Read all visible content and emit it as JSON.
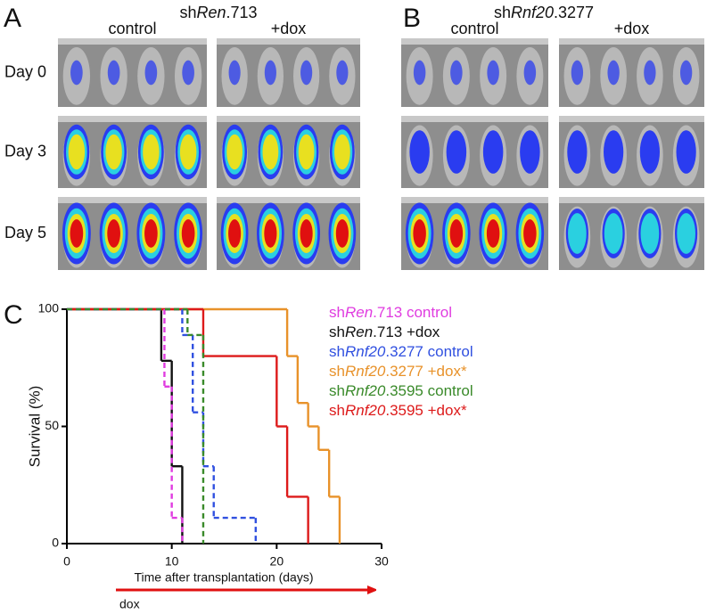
{
  "panels": [
    {
      "label": "A",
      "title": [
        "sh",
        "Ren",
        ".713"
      ],
      "columns": [
        "control",
        "+dox"
      ]
    },
    {
      "label": "B",
      "title": [
        "sh",
        "Rnf20",
        ".3277"
      ],
      "columns": [
        "control",
        "+dox"
      ]
    }
  ],
  "rows": [
    "Day 0",
    "Day 3",
    "Day 5"
  ],
  "chart_data": {
    "type": "step",
    "panel_label": "C",
    "ylabel": "Survival (%)",
    "xlabel": "Time after transplantation (days)",
    "annotation": "dox",
    "xlim": [
      0,
      30
    ],
    "xticks": [
      0,
      10,
      20,
      30
    ],
    "ylim": [
      0,
      100
    ],
    "yticks": [
      0,
      50,
      100
    ],
    "series": [
      {
        "name": [
          "sh",
          "Ren",
          ".713 control"
        ],
        "color": "#e03ce0",
        "dashed": true,
        "x": [
          0,
          9.3,
          10,
          11
        ],
        "values": [
          100,
          67,
          11,
          0
        ]
      },
      {
        "name": [
          "sh",
          "Ren",
          ".713 +dox"
        ],
        "color": "#111111",
        "dashed": false,
        "x": [
          0,
          9,
          10,
          11
        ],
        "values": [
          100,
          78,
          33,
          0
        ]
      },
      {
        "name": [
          "sh",
          "Rnf20",
          ".3277 control"
        ],
        "color": "#3050e0",
        "dashed": true,
        "x": [
          0,
          11,
          12,
          13,
          14,
          18
        ],
        "values": [
          100,
          89,
          56,
          33,
          11,
          0
        ]
      },
      {
        "name": [
          "sh",
          "Rnf20",
          ".3277 +dox*"
        ],
        "color": "#e8922a",
        "dashed": false,
        "x": [
          0,
          21,
          22,
          23,
          24,
          25,
          26
        ],
        "values": [
          100,
          80,
          60,
          50,
          40,
          20,
          0
        ]
      },
      {
        "name": [
          "sh",
          "Rnf20",
          ".3595 control"
        ],
        "color": "#3a8a2a",
        "dashed": true,
        "x": [
          0,
          11.5,
          13
        ],
        "values": [
          100,
          89,
          0
        ]
      },
      {
        "name": [
          "sh",
          "Rnf20",
          ".3595 +dox*"
        ],
        "color": "#dd1a1a",
        "dashed": false,
        "x": [
          0,
          13,
          20,
          21,
          23
        ],
        "values": [
          100,
          80,
          50,
          20,
          0
        ]
      }
    ]
  }
}
